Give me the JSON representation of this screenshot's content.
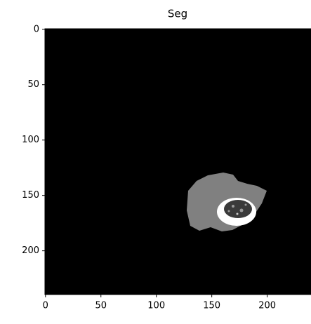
{
  "chart_data": {
    "type": "image",
    "title": "Seg",
    "xlim": [
      -0.5,
      239.5
    ],
    "ylim": [
      239.5,
      -0.5
    ],
    "xticks": [
      0,
      50,
      100,
      150,
      200
    ],
    "yticks": [
      0,
      50,
      100,
      150,
      200
    ]
  }
}
